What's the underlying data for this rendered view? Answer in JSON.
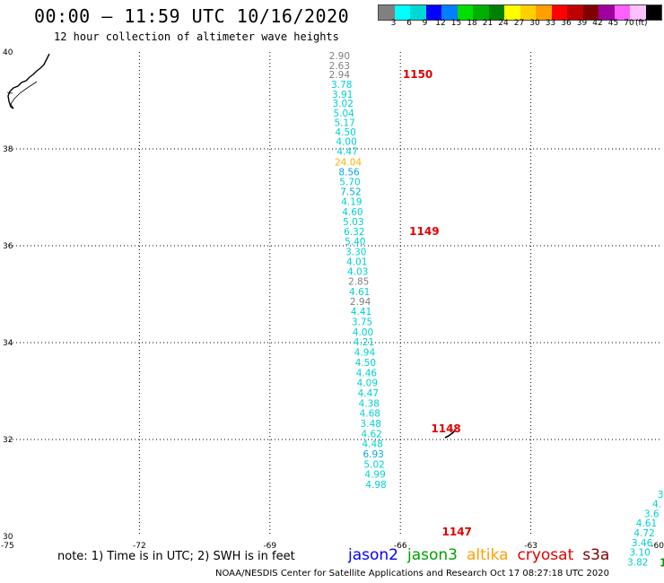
{
  "title": "00:00 – 11:59 UTC 10/16/2020",
  "subtitle": "12 hour collection of altimeter wave heights",
  "legend": {
    "swatches": [
      "#808080",
      "#00ffff",
      "#00d8d8",
      "#0000ff",
      "#0080ff",
      "#00e000",
      "#00b000",
      "#008000",
      "#ffff00",
      "#ffd000",
      "#ffa000",
      "#ff0000",
      "#c00000",
      "#800000",
      "#a000a0",
      "#ff60ff",
      "#ffc0ff",
      "#000000"
    ],
    "labels": [
      "3",
      "6",
      "9",
      "12",
      "15",
      "18",
      "21",
      "24",
      "27",
      "30",
      "33",
      "36",
      "39",
      "42",
      "45",
      "70"
    ],
    "unit": "(ft)"
  },
  "axes": {
    "lon_ticks": [
      "-75",
      "-72",
      "-69",
      "-66",
      "-63",
      "-60"
    ],
    "lat_ticks": [
      "40",
      "38",
      "36",
      "34",
      "32",
      "30"
    ]
  },
  "track": [
    {
      "lat": 39.85,
      "lon": -67.4,
      "value": "2.90",
      "color": "#808080"
    },
    {
      "lat": 39.65,
      "lon": -67.4,
      "value": "2.63",
      "color": "#808080"
    },
    {
      "lat": 39.46,
      "lon": -67.4,
      "value": "2.94",
      "color": "#808080"
    },
    {
      "lat": 39.26,
      "lon": -67.35,
      "value": "3.78",
      "color": "#00d0d0"
    },
    {
      "lat": 39.06,
      "lon": -67.33,
      "value": "3.91",
      "color": "#00d0d0"
    },
    {
      "lat": 38.87,
      "lon": -67.32,
      "value": "3.02",
      "color": "#00d0d0"
    },
    {
      "lat": 38.67,
      "lon": -67.3,
      "value": "5.04",
      "color": "#00d0d0"
    },
    {
      "lat": 38.47,
      "lon": -67.28,
      "value": "5.17",
      "color": "#00d0d0"
    },
    {
      "lat": 38.28,
      "lon": -67.26,
      "value": "4.50",
      "color": "#00d0d0"
    },
    {
      "lat": 38.08,
      "lon": -67.24,
      "value": "4.00",
      "color": "#00d0d0"
    },
    {
      "lat": 37.88,
      "lon": -67.22,
      "value": "4.47",
      "color": "#00d0d0"
    },
    {
      "lat": 37.66,
      "lon": -67.2,
      "value": "24.04",
      "color": "#ffb000"
    },
    {
      "lat": 37.45,
      "lon": -67.18,
      "value": "8.56",
      "color": "#00a8e0"
    },
    {
      "lat": 37.25,
      "lon": -67.16,
      "value": "5.70",
      "color": "#00d0d0"
    },
    {
      "lat": 37.05,
      "lon": -67.14,
      "value": "7.52",
      "color": "#00a8e0"
    },
    {
      "lat": 36.84,
      "lon": -67.12,
      "value": "4.19",
      "color": "#00d0d0"
    },
    {
      "lat": 36.63,
      "lon": -67.1,
      "value": "4.60",
      "color": "#00d0d0"
    },
    {
      "lat": 36.43,
      "lon": -67.08,
      "value": "5.03",
      "color": "#00d0d0"
    },
    {
      "lat": 36.22,
      "lon": -67.06,
      "value": "6.32",
      "color": "#00d0d0"
    },
    {
      "lat": 36.02,
      "lon": -67.04,
      "value": "5.40",
      "color": "#00d0d0"
    },
    {
      "lat": 35.81,
      "lon": -67.02,
      "value": "3.30",
      "color": "#00d0d0"
    },
    {
      "lat": 35.6,
      "lon": -67.0,
      "value": "4.01",
      "color": "#00d0d0"
    },
    {
      "lat": 35.4,
      "lon": -66.98,
      "value": "4.03",
      "color": "#00d0d0"
    },
    {
      "lat": 35.19,
      "lon": -66.96,
      "value": "2.85",
      "color": "#808080"
    },
    {
      "lat": 34.98,
      "lon": -66.94,
      "value": "4.61",
      "color": "#00d0d0"
    },
    {
      "lat": 34.78,
      "lon": -66.92,
      "value": "2.94",
      "color": "#808080"
    },
    {
      "lat": 34.57,
      "lon": -66.9,
      "value": "4.41",
      "color": "#00d0d0"
    },
    {
      "lat": 34.36,
      "lon": -66.88,
      "value": "3.75",
      "color": "#00d0d0"
    },
    {
      "lat": 34.15,
      "lon": -66.86,
      "value": "4.00",
      "color": "#00d0d0"
    },
    {
      "lat": 33.94,
      "lon": -66.84,
      "value": "4.21",
      "color": "#00d0d0"
    },
    {
      "lat": 33.73,
      "lon": -66.82,
      "value": "4.94",
      "color": "#00d0d0"
    },
    {
      "lat": 33.52,
      "lon": -66.8,
      "value": "4.50",
      "color": "#00d0d0"
    },
    {
      "lat": 33.31,
      "lon": -66.78,
      "value": "4.46",
      "color": "#00d0d0"
    },
    {
      "lat": 33.1,
      "lon": -66.76,
      "value": "4.09",
      "color": "#00d0d0"
    },
    {
      "lat": 32.89,
      "lon": -66.74,
      "value": "4.47",
      "color": "#00d0d0"
    },
    {
      "lat": 32.68,
      "lon": -66.72,
      "value": "4.38",
      "color": "#00d0d0"
    },
    {
      "lat": 32.47,
      "lon": -66.7,
      "value": "4.68",
      "color": "#00d0d0"
    },
    {
      "lat": 32.26,
      "lon": -66.68,
      "value": "3.48",
      "color": "#00d0d0"
    },
    {
      "lat": 32.05,
      "lon": -66.66,
      "value": "4.62",
      "color": "#00d0d0"
    },
    {
      "lat": 31.84,
      "lon": -66.64,
      "value": "4.48",
      "color": "#00d0d0"
    },
    {
      "lat": 31.63,
      "lon": -66.62,
      "value": "6.93",
      "color": "#00a8e0"
    },
    {
      "lat": 31.42,
      "lon": -66.6,
      "value": "5.02",
      "color": "#00d0d0"
    },
    {
      "lat": 31.21,
      "lon": -66.58,
      "value": "4.99",
      "color": "#00d0d0"
    },
    {
      "lat": 31.0,
      "lon": -66.56,
      "value": "4.98",
      "color": "#00d0d0"
    }
  ],
  "track_east": [
    {
      "lat": 30.8,
      "lon": -59.95,
      "value": "3",
      "color": "#00d0d0"
    },
    {
      "lat": 30.6,
      "lon": -60.0,
      "value": "4.",
      "color": "#00d0d0"
    },
    {
      "lat": 30.4,
      "lon": -60.05,
      "value": "3.6",
      "color": "#00d0d0"
    },
    {
      "lat": 30.2,
      "lon": -60.1,
      "value": "4.61",
      "color": "#00d0d0"
    },
    {
      "lat": 30.0,
      "lon": -60.15,
      "value": "4.72",
      "color": "#00d0d0"
    },
    {
      "lat": 29.8,
      "lon": -60.2,
      "value": "3.46",
      "color": "#00d0d0"
    },
    {
      "lat": 29.6,
      "lon": -60.25,
      "value": "3.10",
      "color": "#00d0d0"
    },
    {
      "lat": 29.4,
      "lon": -60.3,
      "value": "3.82",
      "color": "#00d0d0"
    }
  ],
  "time_labels": [
    {
      "lat": 39.46,
      "lon": -65.6,
      "value": "1150"
    },
    {
      "lat": 36.22,
      "lon": -65.45,
      "value": "1149"
    },
    {
      "lat": 32.15,
      "lon": -64.95,
      "value": "1148"
    },
    {
      "lat": 30.02,
      "lon": -64.7,
      "value": "1147"
    }
  ],
  "edge_mark": {
    "value": "1",
    "color": "#00a000"
  },
  "note": "note: 1) Time is in UTC; 2) SWH is in feet",
  "satellites": [
    {
      "name": "jason2",
      "color": "#0000ff"
    },
    {
      "name": "jason3",
      "color": "#00a000"
    },
    {
      "name": "altika",
      "color": "#ffa000"
    },
    {
      "name": "cryosat",
      "color": "#e00000"
    },
    {
      "name": "s3a",
      "color": "#800000"
    }
  ],
  "credit": "NOAA/NESDIS Center for Satellite Applications and Research    Oct 17 08:27:18 UTC 2020"
}
